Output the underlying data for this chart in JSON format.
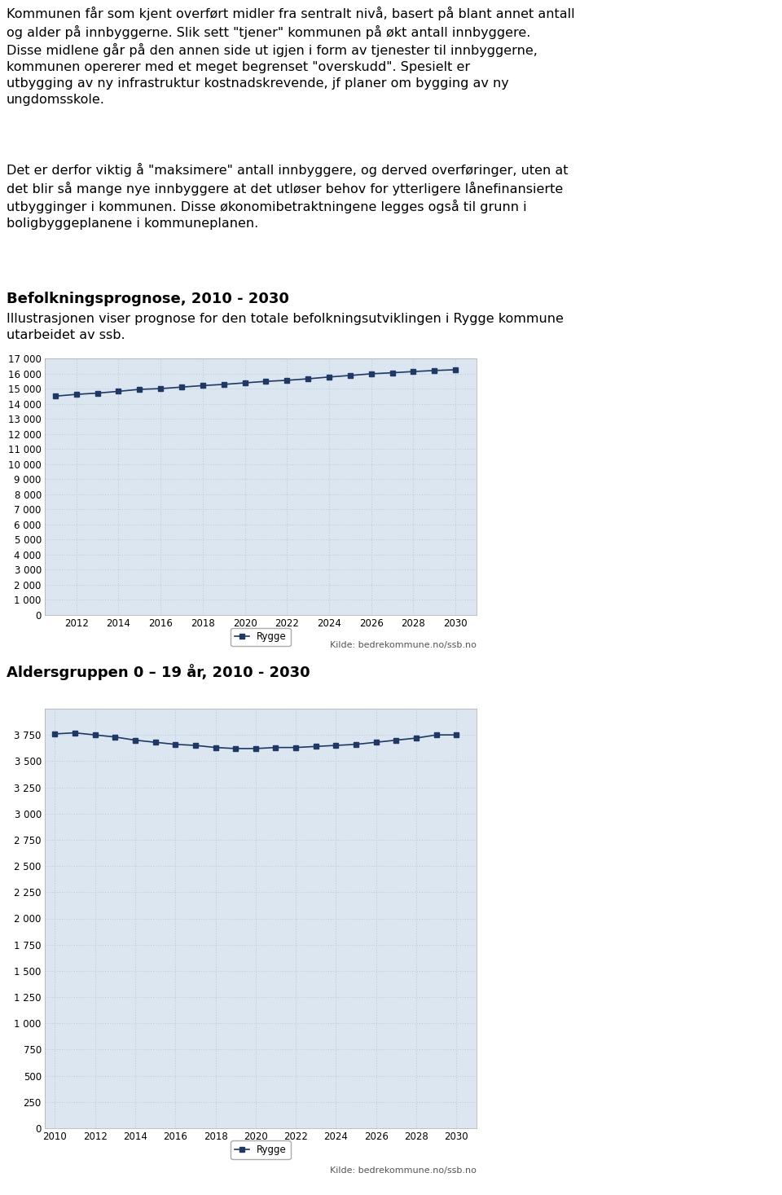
{
  "para1_lines": [
    "Kommunen får som kjent overført midler fra sentralt nivå, basert på blant annet antall",
    "og alder på innbyggerne. Slik sett \"tjener\" kommunen på økt antall innbyggere.",
    "Disse midlene går på den annen side ut igjen i form av tjenester til innbyggerne,",
    "kommunen opererer med et meget begrenset \"overskudd\". Spesielt er",
    "utbygging av ny infrastruktur kostnadskrevende, jf planer om bygging av ny",
    "ungdomsskole."
  ],
  "para2_lines": [
    "Det er derfor viktig å \"maksimere\" antall innbyggere, og derved overføringer, uten at",
    "det blir så mange nye innbyggere at det utløser behov for ytterligere lånefinansierte",
    "utbygginger i kommunen. Disse økonomibetraktningene legges også til grunn i",
    "boligbyggeplanene i kommuneplanen."
  ],
  "chart1_title": "Befolkningsprognose, 2010 - 2030",
  "chart1_subtitle_lines": [
    "Illustrasjonen viser prognose for den totale befolkningsutviklingen i Rygge kommune",
    "utarbeidet av ssb."
  ],
  "chart1_years": [
    2011,
    2012,
    2013,
    2014,
    2015,
    2016,
    2017,
    2018,
    2019,
    2020,
    2021,
    2022,
    2023,
    2024,
    2025,
    2026,
    2027,
    2028,
    2029,
    2030
  ],
  "chart1_values": [
    14500,
    14620,
    14700,
    14820,
    14950,
    15000,
    15100,
    15200,
    15280,
    15380,
    15480,
    15550,
    15650,
    15770,
    15870,
    15980,
    16050,
    16130,
    16200,
    16250
  ],
  "chart1_ylim": [
    0,
    17000
  ],
  "chart1_yticks": [
    0,
    1000,
    2000,
    3000,
    4000,
    5000,
    6000,
    7000,
    8000,
    9000,
    10000,
    11000,
    12000,
    13000,
    14000,
    15000,
    16000,
    17000
  ],
  "chart1_xticks": [
    2012,
    2014,
    2016,
    2018,
    2020,
    2022,
    2024,
    2026,
    2028,
    2030
  ],
  "chart1_source": "Kilde: bedrekommune.no/ssb.no",
  "chart2_title": "Aldersgruppen 0 – 19 år, 2010 - 2030",
  "chart2_years": [
    2010,
    2011,
    2012,
    2013,
    2014,
    2015,
    2016,
    2017,
    2018,
    2019,
    2020,
    2021,
    2022,
    2023,
    2024,
    2025,
    2026,
    2027,
    2028,
    2029,
    2030
  ],
  "chart2_values": [
    3760,
    3770,
    3750,
    3730,
    3700,
    3680,
    3660,
    3650,
    3630,
    3620,
    3620,
    3630,
    3630,
    3640,
    3650,
    3660,
    3680,
    3700,
    3720,
    3750,
    3750
  ],
  "chart2_ylim": [
    0,
    4000
  ],
  "chart2_yticks": [
    0,
    250,
    500,
    750,
    1000,
    1250,
    1500,
    1750,
    2000,
    2250,
    2500,
    2750,
    3000,
    3250,
    3500,
    3750
  ],
  "chart2_xticks": [
    2010,
    2012,
    2014,
    2016,
    2018,
    2020,
    2022,
    2024,
    2026,
    2028,
    2030
  ],
  "chart2_source": "Kilde: bedrekommune.no/ssb.no",
  "legend_label": "Rygge",
  "line_color": "#1f3864",
  "marker": "s",
  "marker_size": 4,
  "line_width": 1.2,
  "plot_bg": "#dce6f0",
  "grid_color": "#b8cfe0",
  "text_fontsize": 11.5,
  "title_fontsize": 13,
  "subtitle_fontsize": 11.5,
  "tick_fontsize": 8.5,
  "source_fontsize": 8,
  "legend_fontsize": 8.5,
  "page_bg": "#ffffff"
}
